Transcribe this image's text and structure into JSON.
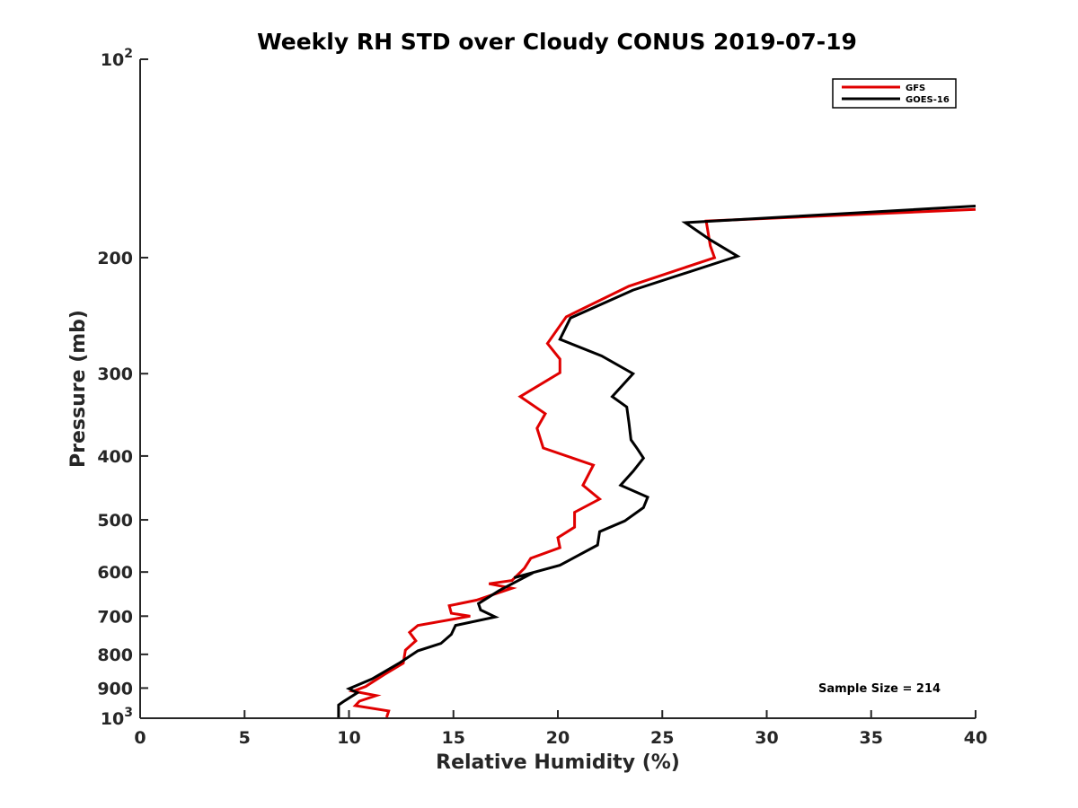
{
  "chart_data": {
    "type": "line",
    "title": "Weekly RH STD over Cloudy CONUS 2019-07-19",
    "xlabel": "Relative Humidity (%)",
    "ylabel": "Pressure (mb)",
    "xlim": [
      0,
      40
    ],
    "ylim": [
      100,
      1000
    ],
    "yscale": "log",
    "y_reversed": true,
    "grid": false,
    "legend_position": "top-right",
    "x_ticks": [
      "0",
      "5",
      "10",
      "15",
      "20",
      "25",
      "30",
      "35",
      "40"
    ],
    "y_ticks": [
      {
        "value": 100,
        "label": "10",
        "exp": "2"
      },
      {
        "value": 200,
        "label": "200",
        "exp": ""
      },
      {
        "value": 300,
        "label": "300",
        "exp": ""
      },
      {
        "value": 400,
        "label": "400",
        "exp": ""
      },
      {
        "value": 500,
        "label": "500",
        "exp": ""
      },
      {
        "value": 600,
        "label": "600",
        "exp": ""
      },
      {
        "value": 700,
        "label": "700",
        "exp": ""
      },
      {
        "value": 800,
        "label": "800",
        "exp": ""
      },
      {
        "value": 900,
        "label": "900",
        "exp": ""
      },
      {
        "value": 1000,
        "label": "10",
        "exp": "3"
      }
    ],
    "annotation": "Sample Size = 214",
    "series": [
      {
        "name": "GFS",
        "color": "#e00000",
        "x": [
          40.0,
          27.1,
          27.3,
          27.5,
          23.4,
          20.4,
          19.5,
          20.1,
          20.1,
          18.2,
          19.4,
          19.0,
          19.3,
          21.7,
          21.2,
          22.0,
          20.8,
          20.8,
          20.0,
          20.1,
          18.7,
          18.4,
          17.8,
          16.7,
          17.8,
          16.1,
          14.8,
          14.9,
          15.8,
          13.3,
          12.9,
          13.2,
          12.7,
          12.6,
          11.7,
          10.8,
          10.2,
          11.3,
          10.5,
          10.3,
          11.9,
          11.8
        ],
        "y": [
          169,
          176,
          192,
          200,
          221,
          246,
          270,
          285,
          299,
          325,
          345,
          363,
          389,
          413,
          443,
          465,
          487,
          513,
          532,
          551,
          572,
          592,
          618,
          625,
          635,
          662,
          675,
          693,
          700,
          723,
          741,
          763,
          788,
          825,
          858,
          895,
          910,
          924,
          942,
          957,
          975,
          997
        ]
      },
      {
        "name": "GOES-16",
        "color": "#000000",
        "x": [
          40.0,
          26.1,
          27.3,
          28.6,
          23.6,
          20.6,
          20.1,
          22.1,
          23.6,
          22.6,
          23.3,
          23.4,
          23.5,
          23.8,
          24.1,
          23.6,
          23.0,
          24.3,
          24.1,
          23.2,
          22.0,
          21.9,
          20.1,
          17.9,
          18.8,
          17.2,
          16.2,
          16.3,
          17.0,
          15.1,
          14.9,
          14.4,
          13.3,
          12.4,
          11.1,
          10.0,
          10.4,
          9.7,
          9.5,
          9.5
        ],
        "y": [
          167,
          177,
          188,
          199,
          224,
          247,
          266,
          282,
          300,
          325,
          337,
          355,
          378,
          390,
          403,
          422,
          443,
          462,
          479,
          502,
          521,
          546,
          586,
          612,
          602,
          640,
          670,
          685,
          702,
          723,
          746,
          770,
          790,
          825,
          872,
          902,
          915,
          945,
          955,
          997
        ]
      }
    ]
  }
}
